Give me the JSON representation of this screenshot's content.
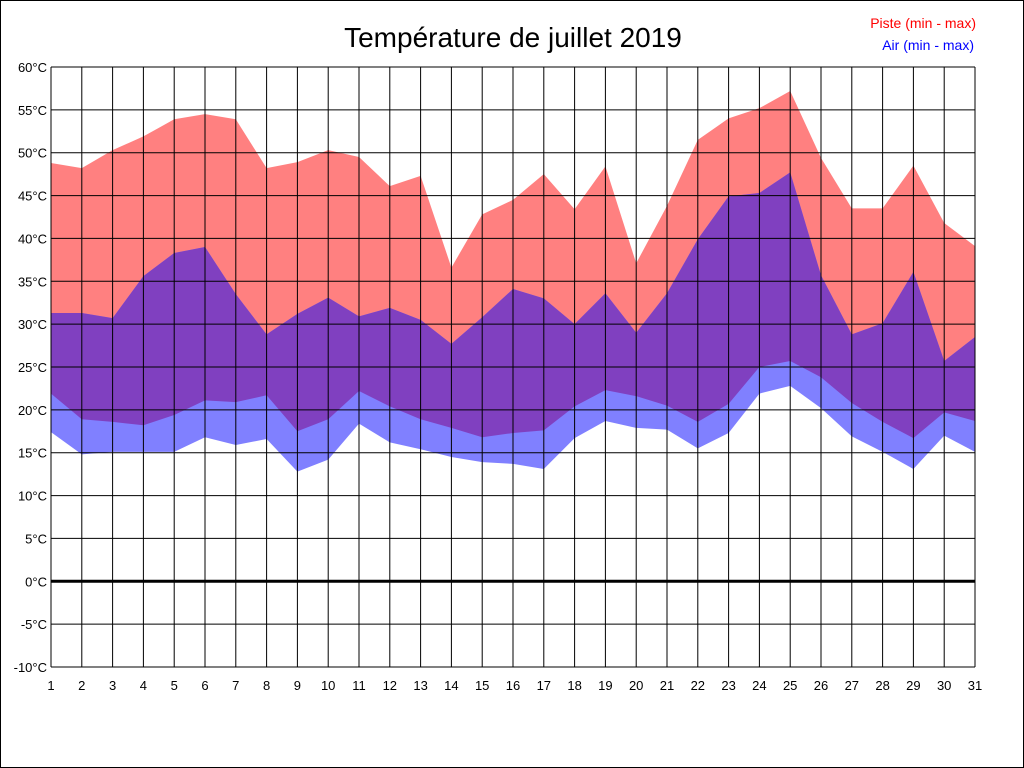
{
  "chart_data": {
    "type": "area",
    "title": "Température de juillet 2019",
    "xlabel": "",
    "ylabel": "",
    "x": [
      1,
      2,
      3,
      4,
      5,
      6,
      7,
      8,
      9,
      10,
      11,
      12,
      13,
      14,
      15,
      16,
      17,
      18,
      19,
      20,
      21,
      22,
      23,
      24,
      25,
      26,
      27,
      28,
      29,
      30,
      31
    ],
    "ylim": [
      -10,
      60
    ],
    "y_ticks": [
      "-10°C",
      "-5°C",
      "0°C",
      "5°C",
      "10°C",
      "15°C",
      "20°C",
      "25°C",
      "30°C",
      "35°C",
      "40°C",
      "45°C",
      "50°C",
      "55°C",
      "60°C"
    ],
    "y_tick_values": [
      -10,
      -5,
      0,
      5,
      10,
      15,
      20,
      25,
      30,
      35,
      40,
      45,
      50,
      55,
      60
    ],
    "grid": true,
    "legend_position": "top-right",
    "series": [
      {
        "name": "Piste (min - max)",
        "color": "#ff0000",
        "fill": "#ff8080",
        "min": [
          21.9,
          18.9,
          18.6,
          18.2,
          19.4,
          21.1,
          20.9,
          21.7,
          17.5,
          18.9,
          22.2,
          20.4,
          18.9,
          17.9,
          16.8,
          17.3,
          17.6,
          20.4,
          22.3,
          21.6,
          20.5,
          18.6,
          20.7,
          25.0,
          25.7,
          23.8,
          20.8,
          18.6,
          16.7,
          19.7,
          18.7
        ],
        "max": [
          48.8,
          48.2,
          50.3,
          51.9,
          53.9,
          54.5,
          53.9,
          48.2,
          48.9,
          50.3,
          49.5,
          46.1,
          47.3,
          36.6,
          42.8,
          44.5,
          47.5,
          43.4,
          48.4,
          37.1,
          43.8,
          51.5,
          54.0,
          55.2,
          57.2,
          49.4,
          43.5,
          43.5,
          48.5,
          41.8,
          39.1
        ]
      },
      {
        "name": "Air (min - max)",
        "color": "#0000ff",
        "fill": "#8080ff",
        "min": [
          17.4,
          14.8,
          15.1,
          15.1,
          15.1,
          16.8,
          15.9,
          16.6,
          12.8,
          14.2,
          18.4,
          16.2,
          15.4,
          14.5,
          13.9,
          13.7,
          13.1,
          16.7,
          18.7,
          17.9,
          17.7,
          15.5,
          17.3,
          21.9,
          22.8,
          20.2,
          16.9,
          15.1,
          13.1,
          17.0,
          15.1
        ],
        "max": [
          31.3,
          31.3,
          30.7,
          35.6,
          38.3,
          39.0,
          33.5,
          28.8,
          31.2,
          33.1,
          30.9,
          31.9,
          30.5,
          27.7,
          30.8,
          34.1,
          33.0,
          30.0,
          33.6,
          29.0,
          33.6,
          39.9,
          44.9,
          45.3,
          47.7,
          35.7,
          28.8,
          30.1,
          36.1,
          25.7,
          28.5
        ]
      }
    ],
    "overlap_fill": "#8040c0"
  }
}
